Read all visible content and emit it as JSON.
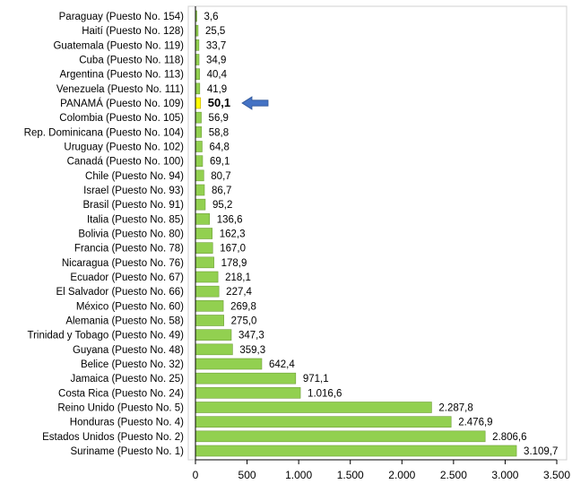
{
  "chart_data": {
    "type": "bar",
    "orientation": "horizontal",
    "categories": [
      "Paraguay (Puesto No. 154)",
      "Haití (Puesto No. 128)",
      "Guatemala (Puesto No. 119)",
      "Cuba (Puesto No. 118)",
      "Argentina (Puesto No. 113)",
      "Venezuela (Puesto No. 111)",
      "PANAMÁ (Puesto No. 109)",
      "Colombia (Puesto No. 105)",
      "Rep. Dominicana (Puesto No. 104)",
      "Uruguay (Puesto No. 102)",
      "Canadá (Puesto No. 100)",
      "Chile (Puesto No. 94)",
      "Israel (Puesto No. 93)",
      "Brasil (Puesto No. 91)",
      "Italia (Puesto No. 85)",
      "Bolivia (Puesto No. 80)",
      "Francia (Puesto No. 78)",
      "Nicaragua (Puesto No. 76)",
      "Ecuador (Puesto No. 67)",
      "El Salvador (Puesto No. 66)",
      "México (Puesto No. 60)",
      "Alemania (Puesto No. 58)",
      "Trinidad y Tobago (Puesto No. 49)",
      "Guyana (Puesto No. 48)",
      "Belice (Puesto No. 32)",
      "Jamaica (Puesto No. 25)",
      "Costa Rica (Puesto No. 24)",
      "Reino Unido (Puesto No. 5)",
      "Honduras (Puesto No. 4)",
      "Estados Unidos (Puesto No. 2)",
      "Suriname (Puesto No. 1)"
    ],
    "values": [
      3.6,
      25.5,
      33.7,
      34.9,
      40.4,
      41.9,
      50.1,
      56.9,
      58.8,
      64.8,
      69.1,
      80.7,
      86.7,
      95.2,
      136.6,
      162.3,
      167.0,
      178.9,
      218.1,
      227.4,
      269.8,
      275.0,
      347.3,
      359.3,
      642.4,
      971.1,
      1016.6,
      2287.8,
      2476.9,
      2806.6,
      3109.7
    ],
    "value_labels": [
      "3,6",
      "25,5",
      "33,7",
      "34,9",
      "40,4",
      "41,9",
      "50,1",
      "56,9",
      "58,8",
      "64,8",
      "69,1",
      "80,7",
      "86,7",
      "95,2",
      "136,6",
      "162,3",
      "167,0",
      "178,9",
      "218,1",
      "227,4",
      "269,8",
      "275,0",
      "347,3",
      "359,3",
      "642,4",
      "971,1",
      "1.016,6",
      "2.287,8",
      "2.476,9",
      "2.806,6",
      "3.109,7"
    ],
    "highlight_category": "PANAMÁ (Puesto No. 109)",
    "xlim": [
      0,
      3500
    ],
    "x_ticks": [
      0,
      500,
      1000,
      1500,
      2000,
      2500,
      3000,
      3500
    ],
    "x_tick_labels": [
      "0",
      "500",
      "1.000",
      "1.500",
      "2.000",
      "2.500",
      "3.000",
      "3.500"
    ],
    "title": "",
    "xlabel": "",
    "ylabel": "",
    "grid": false,
    "legend": "none",
    "colors": {
      "bar": "#92d050",
      "bar_border": "#6f9e3a",
      "highlight": "#ffff00",
      "highlight_border": "#bfa000",
      "arrow": "#4472c4",
      "axis": "#000000",
      "frame": "#d0d0d0"
    },
    "annotation": {
      "type": "arrow",
      "target": "PANAMÁ (Puesto No. 109)",
      "icon": "left-arrow-icon"
    }
  }
}
